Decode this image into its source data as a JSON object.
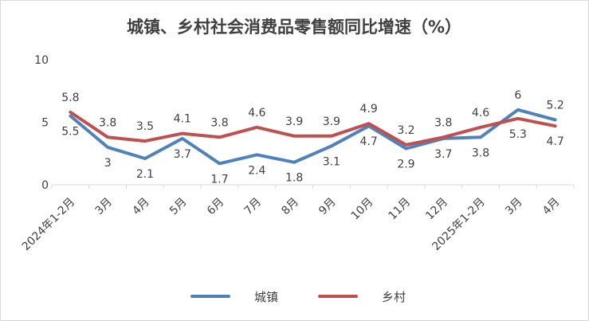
{
  "chart_data": {
    "type": "line",
    "title": "城镇、乡村社会消费品零售额同比增速（%）",
    "categories": [
      "2024年1-2月",
      "3月",
      "4月",
      "5月",
      "6月",
      "7月",
      "8月",
      "9月",
      "10月",
      "11月",
      "12月",
      "2025年1-2月",
      "3月",
      "4月"
    ],
    "series": [
      {
        "name": "城镇",
        "color": "#4f81bd",
        "values": [
          5.5,
          3,
          2.1,
          3.7,
          1.7,
          2.4,
          1.8,
          3.1,
          4.7,
          2.9,
          3.7,
          3.8,
          6,
          5.2
        ]
      },
      {
        "name": "乡村",
        "color": "#c0504d",
        "values": [
          5.8,
          3.8,
          3.5,
          4.1,
          3.8,
          4.6,
          3.9,
          3.9,
          4.9,
          3.2,
          3.8,
          4.6,
          5.3,
          4.7
        ]
      }
    ],
    "y_ticks": [
      "0",
      "5",
      "10"
    ],
    "ylim": [
      0,
      10
    ],
    "grid": false,
    "legend": "bottom"
  }
}
